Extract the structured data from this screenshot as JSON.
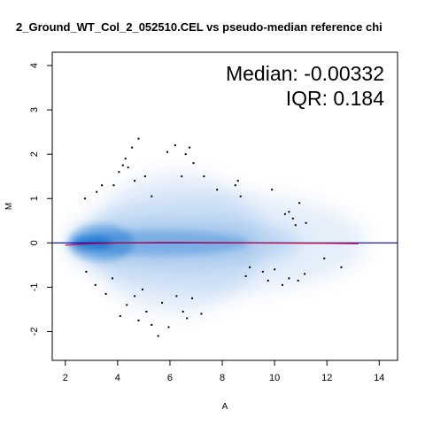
{
  "chart_data": {
    "type": "scatter",
    "title": "2_Ground_WT_Col_2_052510.CEL vs pseudo-median reference chi",
    "xlabel": "A",
    "ylabel": "M",
    "xlim": [
      1.5,
      14.7
    ],
    "ylim": [
      -2.65,
      4.3
    ],
    "xticks": [
      2,
      4,
      6,
      8,
      10,
      12,
      14
    ],
    "yticks": [
      -2,
      -1,
      0,
      1,
      2,
      3,
      4
    ],
    "grid": false,
    "annotations": {
      "median": "Median: -0.00332",
      "iqr": "IQR: 0.184"
    },
    "reference_line": {
      "y": 0,
      "color": "#0000cc"
    },
    "loess_line": {
      "color": "#cc0033",
      "x": [
        2.0,
        3.0,
        4.0,
        6.0,
        8.0,
        9.0,
        12.0,
        13.2
      ],
      "y": [
        -0.05,
        -0.02,
        0.0,
        0.01,
        0.005,
        0.0,
        -0.01,
        -0.02
      ]
    },
    "density_color": "#0066cc",
    "outliers": {
      "x": [
        2.75,
        3.2,
        3.4,
        3.85,
        4.05,
        4.2,
        4.3,
        4.4,
        4.55,
        4.65,
        4.8,
        5.05,
        5.3,
        5.9,
        6.2,
        6.45,
        6.6,
        6.75,
        6.9,
        7.3,
        7.8,
        8.5,
        8.6,
        8.7,
        9.9,
        10.4,
        10.55,
        10.7,
        10.8,
        10.95,
        11.2,
        2.8,
        3.15,
        3.55,
        3.8,
        4.1,
        4.35,
        4.65,
        4.8,
        4.95,
        5.1,
        5.3,
        5.55,
        5.7,
        5.95,
        6.25,
        6.5,
        6.65,
        6.85,
        7.2,
        8.9,
        9.05,
        9.55,
        9.75,
        10.0,
        10.3,
        10.55,
        10.9,
        11.15,
        11.9,
        12.55
      ],
      "y": [
        1.0,
        1.15,
        1.3,
        1.3,
        1.6,
        1.75,
        1.9,
        1.7,
        2.15,
        1.4,
        2.35,
        1.5,
        1.05,
        2.05,
        2.2,
        1.5,
        2.0,
        2.15,
        1.8,
        1.5,
        1.2,
        1.3,
        1.4,
        1.05,
        1.2,
        0.65,
        0.7,
        0.55,
        0.4,
        0.9,
        0.45,
        -0.65,
        -0.95,
        -1.15,
        -0.8,
        -1.65,
        -1.4,
        -1.2,
        -1.75,
        -1.05,
        -1.55,
        -1.85,
        -2.1,
        -1.35,
        -1.9,
        -1.2,
        -1.55,
        -1.7,
        -1.25,
        -1.6,
        -0.75,
        -0.55,
        -0.65,
        -0.85,
        -0.6,
        -0.95,
        -0.8,
        -0.85,
        -0.7,
        -0.35,
        -0.55
      ]
    }
  }
}
